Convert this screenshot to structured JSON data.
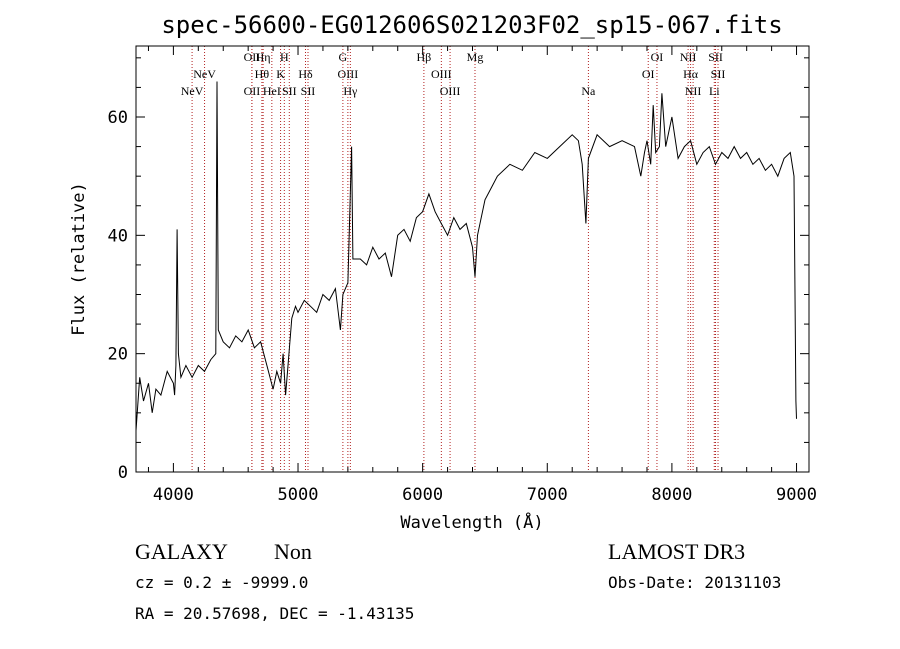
{
  "chart_data": {
    "type": "line",
    "title": "spec-56600-EG012606S021203F02_sp15-067.fits",
    "xlabel": "Wavelength (Å)",
    "ylabel": "Flux (relative)",
    "xlim": [
      3700,
      9100
    ],
    "ylim": [
      0,
      72
    ],
    "xticks": [
      4000,
      5000,
      6000,
      7000,
      8000,
      9000
    ],
    "yticks": [
      0,
      20,
      40,
      60
    ],
    "x_tick_labels": [
      "4000",
      "5000",
      "6000",
      "7000",
      "8000",
      "9000"
    ],
    "y_tick_labels": [
      "0",
      "20",
      "40",
      "60"
    ],
    "series": [
      {
        "name": "flux",
        "color": "#000000",
        "points": [
          [
            3700,
            7
          ],
          [
            3730,
            16
          ],
          [
            3760,
            12
          ],
          [
            3800,
            15
          ],
          [
            3830,
            10
          ],
          [
            3860,
            14
          ],
          [
            3900,
            13
          ],
          [
            3950,
            17
          ],
          [
            4000,
            15
          ],
          [
            4010,
            13
          ],
          [
            4020,
            18
          ],
          [
            4030,
            41
          ],
          [
            4040,
            20
          ],
          [
            4060,
            16
          ],
          [
            4100,
            18
          ],
          [
            4150,
            16
          ],
          [
            4200,
            18
          ],
          [
            4250,
            17
          ],
          [
            4300,
            19
          ],
          [
            4340,
            20
          ],
          [
            4350,
            66
          ],
          [
            4360,
            24
          ],
          [
            4400,
            22
          ],
          [
            4450,
            21
          ],
          [
            4500,
            23
          ],
          [
            4550,
            22
          ],
          [
            4600,
            24
          ],
          [
            4650,
            21
          ],
          [
            4700,
            22
          ],
          [
            4750,
            18
          ],
          [
            4800,
            14
          ],
          [
            4830,
            17
          ],
          [
            4860,
            15
          ],
          [
            4880,
            20
          ],
          [
            4900,
            13
          ],
          [
            4920,
            18
          ],
          [
            4950,
            26
          ],
          [
            4980,
            28
          ],
          [
            5000,
            27
          ],
          [
            5050,
            29
          ],
          [
            5100,
            28
          ],
          [
            5150,
            27
          ],
          [
            5200,
            30
          ],
          [
            5250,
            29
          ],
          [
            5300,
            31
          ],
          [
            5340,
            24
          ],
          [
            5360,
            30
          ],
          [
            5400,
            32
          ],
          [
            5430,
            55
          ],
          [
            5440,
            36
          ],
          [
            5500,
            36
          ],
          [
            5550,
            35
          ],
          [
            5600,
            38
          ],
          [
            5650,
            36
          ],
          [
            5700,
            37
          ],
          [
            5750,
            33
          ],
          [
            5800,
            40
          ],
          [
            5850,
            41
          ],
          [
            5900,
            39
          ],
          [
            5950,
            43
          ],
          [
            6000,
            44
          ],
          [
            6050,
            47
          ],
          [
            6100,
            44
          ],
          [
            6150,
            42
          ],
          [
            6200,
            40
          ],
          [
            6250,
            43
          ],
          [
            6300,
            41
          ],
          [
            6350,
            42
          ],
          [
            6400,
            38
          ],
          [
            6420,
            33
          ],
          [
            6440,
            40
          ],
          [
            6500,
            46
          ],
          [
            6550,
            48
          ],
          [
            6600,
            50
          ],
          [
            6700,
            52
          ],
          [
            6800,
            51
          ],
          [
            6900,
            54
          ],
          [
            7000,
            53
          ],
          [
            7100,
            55
          ],
          [
            7200,
            57
          ],
          [
            7250,
            56
          ],
          [
            7280,
            52
          ],
          [
            7310,
            42
          ],
          [
            7330,
            53
          ],
          [
            7400,
            57
          ],
          [
            7500,
            55
          ],
          [
            7600,
            56
          ],
          [
            7700,
            55
          ],
          [
            7750,
            50
          ],
          [
            7780,
            54
          ],
          [
            7800,
            56
          ],
          [
            7830,
            52
          ],
          [
            7850,
            62
          ],
          [
            7870,
            54
          ],
          [
            7900,
            55
          ],
          [
            7920,
            64
          ],
          [
            7950,
            55
          ],
          [
            8000,
            60
          ],
          [
            8050,
            53
          ],
          [
            8100,
            55
          ],
          [
            8150,
            56
          ],
          [
            8200,
            52
          ],
          [
            8250,
            54
          ],
          [
            8300,
            55
          ],
          [
            8350,
            52
          ],
          [
            8400,
            54
          ],
          [
            8450,
            53
          ],
          [
            8500,
            55
          ],
          [
            8550,
            53
          ],
          [
            8600,
            54
          ],
          [
            8650,
            52
          ],
          [
            8700,
            53
          ],
          [
            8750,
            51
          ],
          [
            8800,
            52
          ],
          [
            8850,
            50
          ],
          [
            8900,
            53
          ],
          [
            8950,
            54
          ],
          [
            8980,
            50
          ],
          [
            8995,
            12
          ],
          [
            9000,
            9
          ]
        ]
      }
    ],
    "annotations": [
      {
        "label": "NeV",
        "wavelength": 4150,
        "tier": 3
      },
      {
        "label": "NeV",
        "wavelength": 4250,
        "tier": 2
      },
      {
        "label": "OII",
        "wavelength": 4630,
        "tier": 1
      },
      {
        "label": "OII",
        "wavelength": 4630,
        "tier": 3
      },
      {
        "label": "Hη",
        "wavelength": 4720,
        "tier": 1
      },
      {
        "label": "Hθ",
        "wavelength": 4710,
        "tier": 2
      },
      {
        "label": "HeI",
        "wavelength": 4790,
        "tier": 3
      },
      {
        "label": "H",
        "wavelength": 4890,
        "tier": 1
      },
      {
        "label": "K",
        "wavelength": 4860,
        "tier": 2
      },
      {
        "label": "SII",
        "wavelength": 4930,
        "tier": 3
      },
      {
        "label": "Hδ",
        "wavelength": 5060,
        "tier": 2
      },
      {
        "label": "SII",
        "wavelength": 5080,
        "tier": 3
      },
      {
        "label": "G",
        "wavelength": 5360,
        "tier": 1
      },
      {
        "label": "OIII",
        "wavelength": 5400,
        "tier": 2
      },
      {
        "label": "Hγ",
        "wavelength": 5420,
        "tier": 3
      },
      {
        "label": "Hβ",
        "wavelength": 6010,
        "tier": 1
      },
      {
        "label": "OIII",
        "wavelength": 6150,
        "tier": 2
      },
      {
        "label": "OIII",
        "wavelength": 6220,
        "tier": 3
      },
      {
        "label": "Mg",
        "wavelength": 6420,
        "tier": 1
      },
      {
        "label": "Na",
        "wavelength": 7330,
        "tier": 3
      },
      {
        "label": "OI",
        "wavelength": 7880,
        "tier": 1
      },
      {
        "label": "OI",
        "wavelength": 7810,
        "tier": 2
      },
      {
        "label": "NII",
        "wavelength": 8130,
        "tier": 1
      },
      {
        "label": "Hα",
        "wavelength": 8150,
        "tier": 2
      },
      {
        "label": "NII",
        "wavelength": 8170,
        "tier": 3
      },
      {
        "label": "SII",
        "wavelength": 8350,
        "tier": 1
      },
      {
        "label": "SII",
        "wavelength": 8370,
        "tier": 2
      },
      {
        "label": "Li",
        "wavelength": 8340,
        "tier": 3
      }
    ]
  },
  "info": {
    "class": "GALAXY",
    "subclass": "Non",
    "survey": "LAMOST DR3",
    "cz": "cz = 0.2 ± -9999.0",
    "obs_date": "Obs-Date: 20131103",
    "coords": "RA =  20.57698, DEC =  -1.43135"
  },
  "colors": {
    "axis": "#000000",
    "spectrum": "#000000",
    "line_marker": "#b22222",
    "background": "#ffffff"
  }
}
